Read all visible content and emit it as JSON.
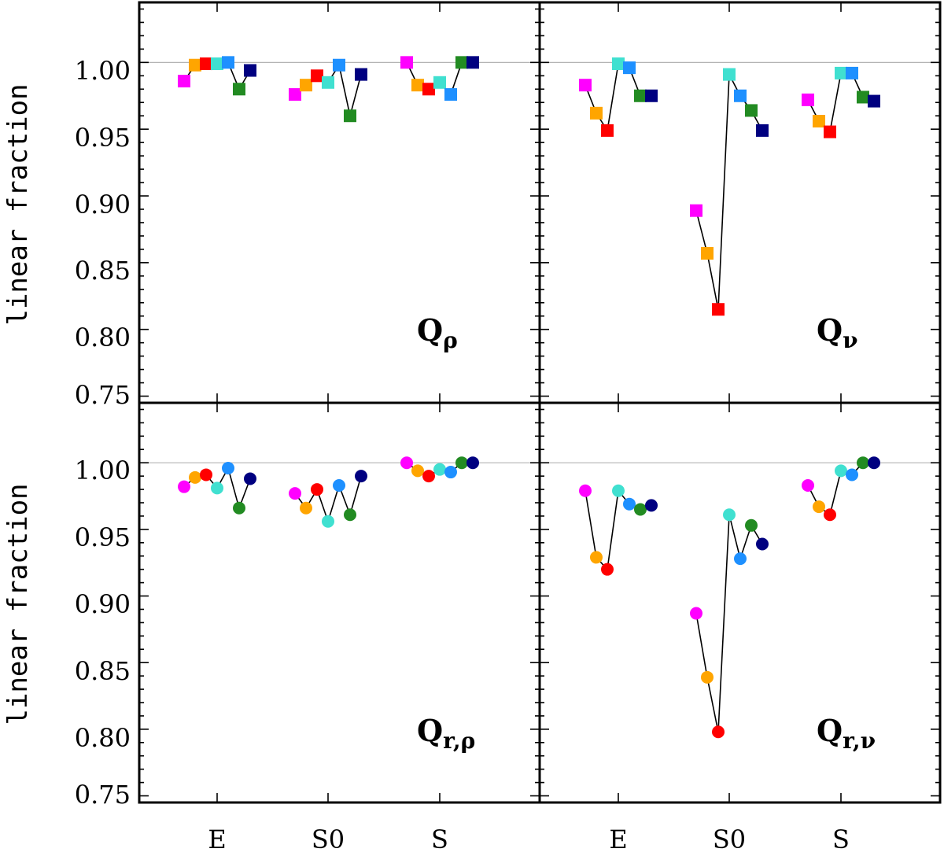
{
  "chart_data": {
    "type": "scatter",
    "ylabel": "linear fraction",
    "ylim": [
      0.745,
      1.045
    ],
    "yticks": [
      0.75,
      0.8,
      0.85,
      0.9,
      0.95,
      1.0
    ],
    "ytick_labels": [
      "0.75",
      "0.80",
      "0.85",
      "0.90",
      "0.95",
      "1.00"
    ],
    "reference_line": 1.0,
    "categories": [
      "E",
      "S0",
      "S"
    ],
    "series_colors": [
      "#ff00ff",
      "#ffa500",
      "#ff0000",
      "#40e0d0",
      "#1e90ff",
      "#228b22",
      "#000080"
    ],
    "panels": [
      {
        "id": "q-rho",
        "label_main": "Q",
        "label_sub": "ρ",
        "marker": "square",
        "groups": [
          {
            "category": "E",
            "values": [
              0.986,
              0.998,
              0.999,
              0.999,
              1.0,
              0.98,
              0.994
            ]
          },
          {
            "category": "S0",
            "values": [
              0.976,
              0.983,
              0.99,
              0.985,
              0.998,
              0.96,
              0.991
            ]
          },
          {
            "category": "S",
            "values": [
              1.0,
              0.983,
              0.98,
              0.985,
              0.976,
              1.0,
              1.0
            ]
          }
        ]
      },
      {
        "id": "q-nu",
        "label_main": "Q",
        "label_sub": "ν",
        "marker": "square",
        "groups": [
          {
            "category": "E",
            "values": [
              0.983,
              0.962,
              0.949,
              0.999,
              0.996,
              0.975,
              0.975
            ]
          },
          {
            "category": "S0",
            "values": [
              0.889,
              0.857,
              0.815,
              0.991,
              0.975,
              0.964,
              0.949
            ]
          },
          {
            "category": "S",
            "values": [
              0.972,
              0.956,
              0.948,
              0.992,
              0.992,
              0.974,
              0.971
            ]
          }
        ]
      },
      {
        "id": "q-r-rho",
        "label_main": "Q",
        "label_sub": "r,ρ",
        "marker": "circle",
        "groups": [
          {
            "category": "E",
            "values": [
              0.982,
              0.989,
              0.991,
              0.981,
              0.996,
              0.966,
              0.988
            ]
          },
          {
            "category": "S0",
            "values": [
              0.977,
              0.966,
              0.98,
              0.956,
              0.983,
              0.961,
              0.99
            ]
          },
          {
            "category": "S",
            "values": [
              1.0,
              0.994,
              0.99,
              0.995,
              0.993,
              1.0,
              1.0
            ]
          }
        ]
      },
      {
        "id": "q-r-nu",
        "label_main": "Q",
        "label_sub": "r,ν",
        "marker": "circle",
        "groups": [
          {
            "category": "E",
            "values": [
              0.979,
              0.929,
              0.92,
              0.979,
              0.969,
              0.965,
              0.968
            ]
          },
          {
            "category": "S0",
            "values": [
              0.887,
              0.839,
              0.798,
              0.961,
              0.928,
              0.953,
              0.939
            ]
          },
          {
            "category": "S",
            "values": [
              0.983,
              0.967,
              0.961,
              0.994,
              0.991,
              1.0,
              1.0
            ]
          }
        ]
      }
    ]
  }
}
